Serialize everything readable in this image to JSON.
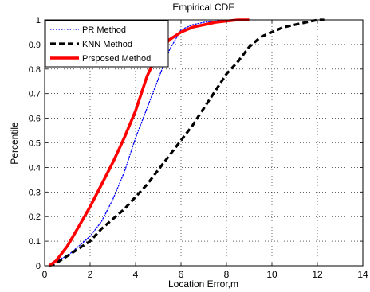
{
  "chart_data": {
    "type": "line",
    "title": "Empirical CDF",
    "xlabel": "Location Error,m",
    "ylabel": "Percentile",
    "xlim": [
      0,
      14
    ],
    "ylim": [
      0,
      1
    ],
    "xticks": [
      "0",
      "2",
      "4",
      "6",
      "8",
      "10",
      "12",
      "14"
    ],
    "yticks": [
      "0",
      "0.1",
      "0.2",
      "0.3",
      "0.4",
      "0.5",
      "0.6",
      "0.7",
      "0.8",
      "0.9",
      "1"
    ],
    "grid": true,
    "legend_position": "top-left",
    "series": [
      {
        "name": "PR Method",
        "color": "#0000ff",
        "style": "dotted",
        "x": [
          0.2,
          0.5,
          1.0,
          1.5,
          2.0,
          2.5,
          3.0,
          3.5,
          4.0,
          4.5,
          5.0,
          5.5,
          6.0,
          6.5,
          7.0,
          7.5,
          8.0
        ],
        "y": [
          0.0,
          0.02,
          0.04,
          0.08,
          0.12,
          0.18,
          0.27,
          0.38,
          0.52,
          0.64,
          0.76,
          0.88,
          0.96,
          0.98,
          0.99,
          0.995,
          1.0
        ]
      },
      {
        "name": "KNN Method",
        "color": "#000000",
        "style": "dashed",
        "x": [
          0.2,
          0.5,
          1.0,
          1.5,
          2.0,
          2.5,
          3.0,
          3.5,
          4.0,
          4.5,
          5.0,
          5.5,
          6.0,
          6.5,
          7.0,
          7.5,
          8.0,
          8.5,
          9.0,
          9.5,
          10.0,
          10.5,
          11.0,
          11.5,
          12.0,
          12.3
        ],
        "y": [
          0.0,
          0.01,
          0.04,
          0.07,
          0.1,
          0.15,
          0.19,
          0.23,
          0.28,
          0.33,
          0.39,
          0.45,
          0.51,
          0.57,
          0.64,
          0.71,
          0.78,
          0.83,
          0.89,
          0.93,
          0.95,
          0.97,
          0.98,
          0.99,
          1.0,
          1.0
        ]
      },
      {
        "name": "Prsposed Method",
        "color": "#ff0000",
        "style": "solid",
        "x": [
          0.2,
          0.5,
          1.0,
          1.5,
          2.0,
          2.5,
          3.0,
          3.5,
          4.0,
          4.5,
          5.0,
          5.5,
          6.0,
          6.5,
          7.0,
          7.5,
          8.0,
          8.5,
          9.0
        ],
        "y": [
          0.0,
          0.02,
          0.08,
          0.16,
          0.24,
          0.33,
          0.42,
          0.52,
          0.63,
          0.77,
          0.87,
          0.92,
          0.95,
          0.97,
          0.98,
          0.99,
          0.995,
          1.0,
          1.0
        ]
      }
    ]
  }
}
